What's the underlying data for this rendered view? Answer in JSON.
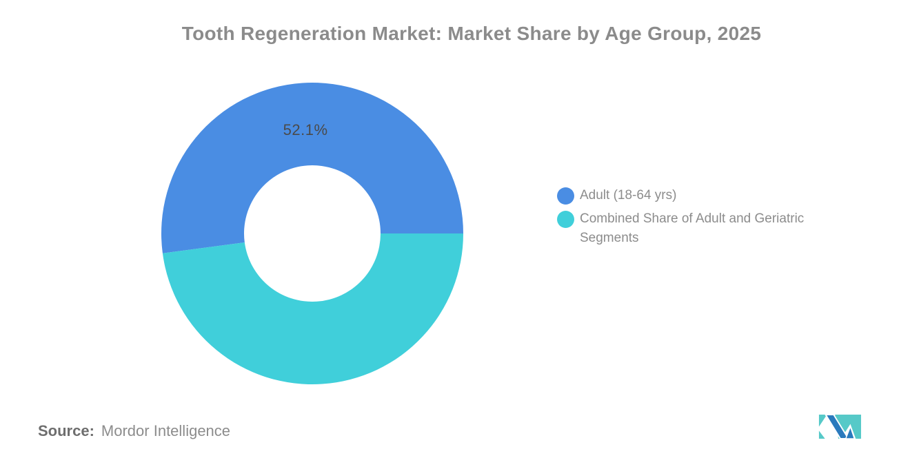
{
  "title": "Tooth Regeneration Market: Market Share by Age Group, 2025",
  "chart_data": {
    "type": "pie",
    "donut": true,
    "title": "Tooth Regeneration Market: Market Share by Age Group, 2025",
    "slices": [
      {
        "label": "Adult (18-64 yrs)",
        "value": 52.1,
        "data_label": "52.1%",
        "color": "#4A8DE3"
      },
      {
        "label": "Combined Share of Adult and Geriatric Segments",
        "value": 47.9,
        "data_label": "",
        "color": "#40CFDA"
      }
    ],
    "start_angle_deg": 0,
    "direction": "counterclockwise",
    "inner_radius_ratio": 0.45,
    "legend_position": "middle-right",
    "background": "#ffffff"
  },
  "legend": {
    "items": [
      {
        "label": "Adult (18-64 yrs)",
        "color": "#4A8DE3"
      },
      {
        "label": "Combined Share of Adult and Geriatric Segments",
        "color": "#40CFDA"
      }
    ]
  },
  "source": {
    "label": "Source:",
    "value": "Mordor Intelligence"
  },
  "logo": {
    "name": "mordor-intelligence-logo",
    "blue": "#2A7ABD",
    "teal": "#56C9C8"
  }
}
